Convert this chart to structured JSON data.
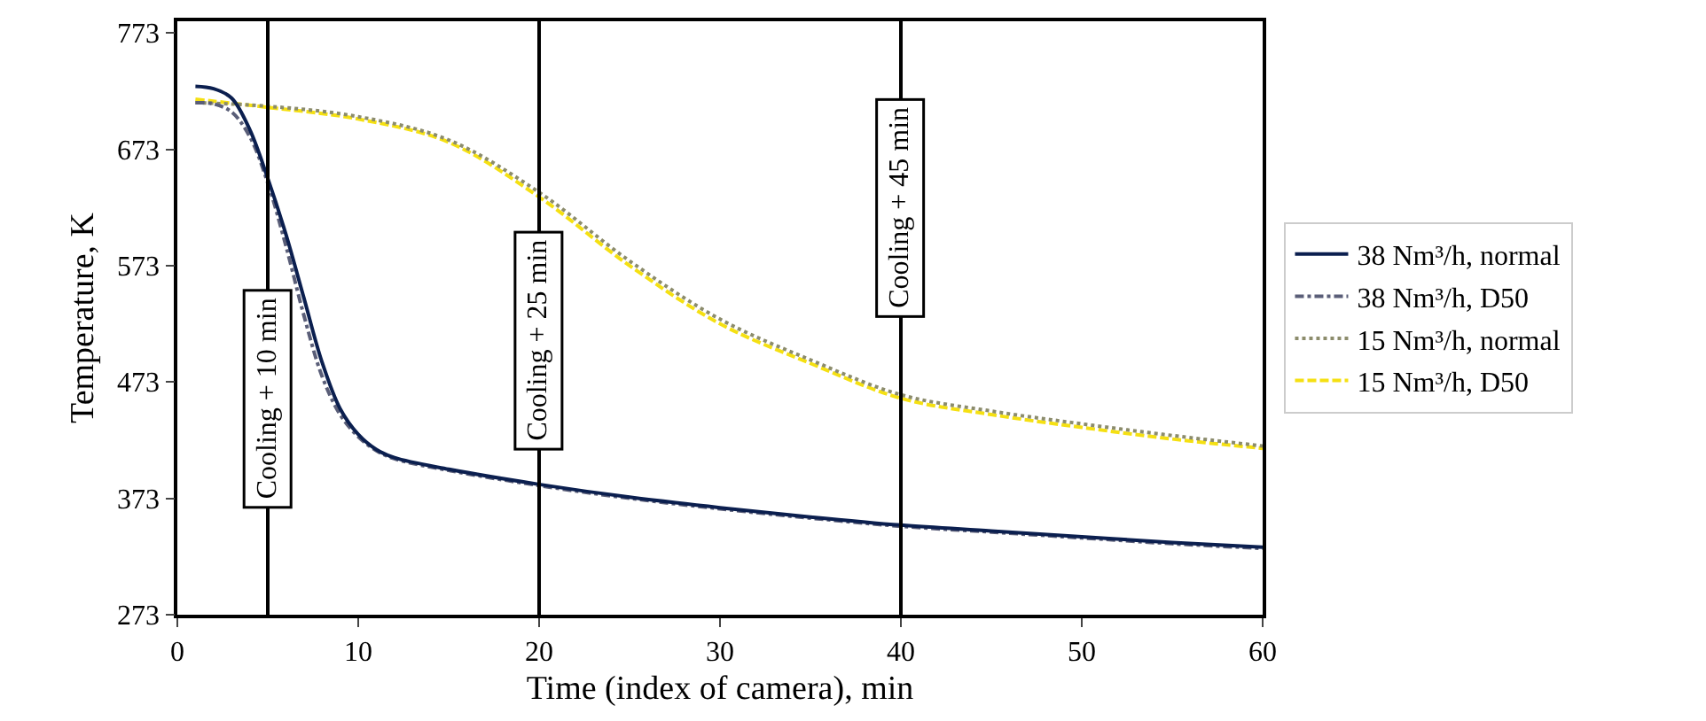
{
  "chart_data": {
    "type": "line",
    "xlabel": "Time (index of camera), min",
    "ylabel": "Temperature, K",
    "xlim": [
      0,
      60
    ],
    "xticks": [
      0,
      10,
      20,
      30,
      40,
      50,
      60
    ],
    "ylim": [
      273,
      783
    ],
    "yticks": [
      273,
      373,
      473,
      573,
      673,
      773
    ],
    "grid": false,
    "legend": "right",
    "series": [
      {
        "name": "38 Nm³/h, normal",
        "color": "#0b1f4f",
        "line_style": "solid",
        "x": [
          1,
          2,
          3,
          4,
          5,
          6,
          7,
          8,
          9,
          10,
          11,
          12,
          15,
          20,
          25,
          30,
          35,
          40,
          45,
          50,
          55,
          60
        ],
        "values": [
          727,
          725,
          717,
          690,
          648,
          600,
          545,
          490,
          450,
          428,
          415,
          408,
          398,
          385,
          374,
          365,
          357,
          350,
          345,
          340,
          335,
          331
        ]
      },
      {
        "name": "38 Nm³/h, D50",
        "color": "#5a5e78",
        "line_style": "dashdot",
        "x": [
          1,
          2,
          3,
          4,
          5,
          6,
          7,
          8,
          9,
          10,
          11,
          12,
          15,
          20,
          25,
          30,
          35,
          40,
          45,
          50,
          55,
          60
        ],
        "values": [
          713,
          712,
          705,
          684,
          644,
          590,
          530,
          478,
          445,
          426,
          414,
          407,
          397,
          384,
          373,
          364,
          356,
          349,
          344,
          339,
          334,
          330
        ]
      },
      {
        "name": "15 Nm³/h, normal",
        "color": "#8c8c6c",
        "line_style": "dotted",
        "x": [
          1,
          5,
          10,
          15,
          20,
          25,
          30,
          35,
          40,
          45,
          50,
          55,
          60
        ],
        "values": [
          713,
          710,
          701,
          681,
          636,
          577,
          527,
          492,
          462,
          448,
          437,
          427,
          418
        ]
      },
      {
        "name": "15 Nm³/h, D50",
        "color": "#f5e012",
        "line_style": "dashed",
        "x": [
          1,
          5,
          10,
          15,
          20,
          25,
          30,
          35,
          40,
          45,
          50,
          55,
          60
        ],
        "values": [
          716,
          709,
          699,
          679,
          632,
          573,
          523,
          489,
          459,
          445,
          434,
          424,
          416
        ]
      }
    ],
    "ref_lines": [
      {
        "axis": "x",
        "value": 5,
        "label": "Cooling + 10 min",
        "color": "#000000"
      },
      {
        "axis": "x",
        "value": 20,
        "label": "Cooling + 25 min",
        "color": "#000000"
      },
      {
        "axis": "x",
        "value": 40,
        "label": "Cooling + 45 min",
        "color": "#000000"
      }
    ]
  }
}
